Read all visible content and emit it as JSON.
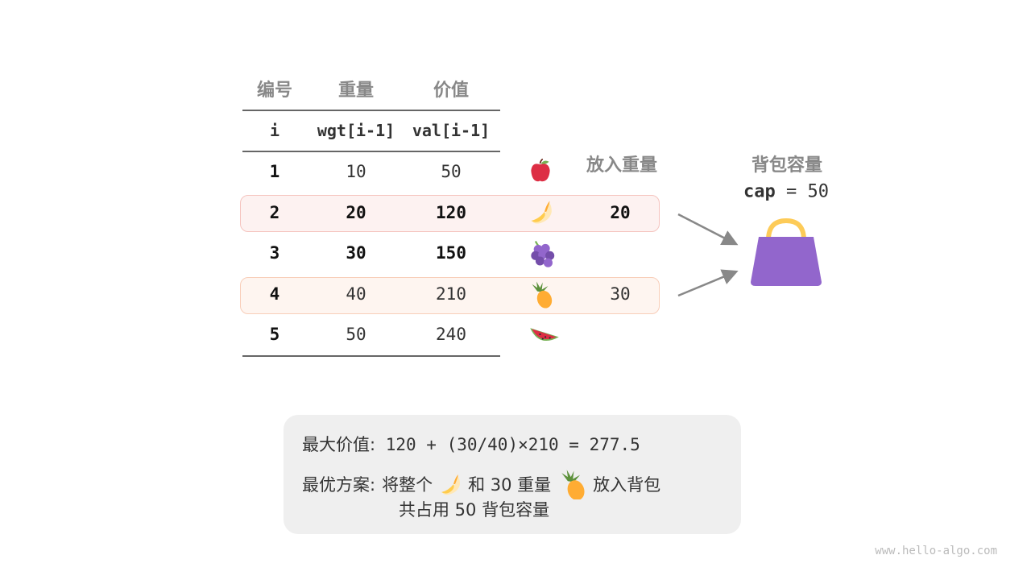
{
  "table": {
    "headers": [
      "编号",
      "重量",
      "价值"
    ],
    "subheaders": [
      "i",
      "wgt[i-1]",
      "val[i-1]"
    ],
    "put_header": "放入重量",
    "rows": [
      {
        "i": "1",
        "wgt": "10",
        "val": "50",
        "fruit": "apple",
        "put": "",
        "highlight": false,
        "bold": false
      },
      {
        "i": "2",
        "wgt": "20",
        "val": "120",
        "fruit": "banana",
        "put": "20",
        "highlight": true,
        "bold": true
      },
      {
        "i": "3",
        "wgt": "30",
        "val": "150",
        "fruit": "grapes",
        "put": "",
        "highlight": false,
        "bold": true
      },
      {
        "i": "4",
        "wgt": "40",
        "val": "210",
        "fruit": "pineapple",
        "put": "30",
        "highlight": true,
        "bold": false
      },
      {
        "i": "5",
        "wgt": "50",
        "val": "240",
        "fruit": "watermelon",
        "put": "",
        "highlight": false,
        "bold": false
      }
    ]
  },
  "knapsack": {
    "title": "背包容量",
    "cap_label": "cap",
    "cap_eq": "= 50",
    "icon": "handbag-icon",
    "color": "#9266cc"
  },
  "summary": {
    "line1_label": "最大价值:",
    "line1_value": "120 + (30/40)×210 = 277.5",
    "line2_label": "最优方案:",
    "line2_a": "将整个",
    "line2_b": "和 30 重量",
    "line2_c": "放入背包",
    "line3": "共占用 50 背包容量"
  },
  "watermark": "www.hello-algo.com",
  "colors": {
    "row2_bg": "#fdf2f1",
    "row2_border": "#f5c4bf",
    "row4_bg": "#fef5f0",
    "row4_border": "#f8ceb9"
  }
}
